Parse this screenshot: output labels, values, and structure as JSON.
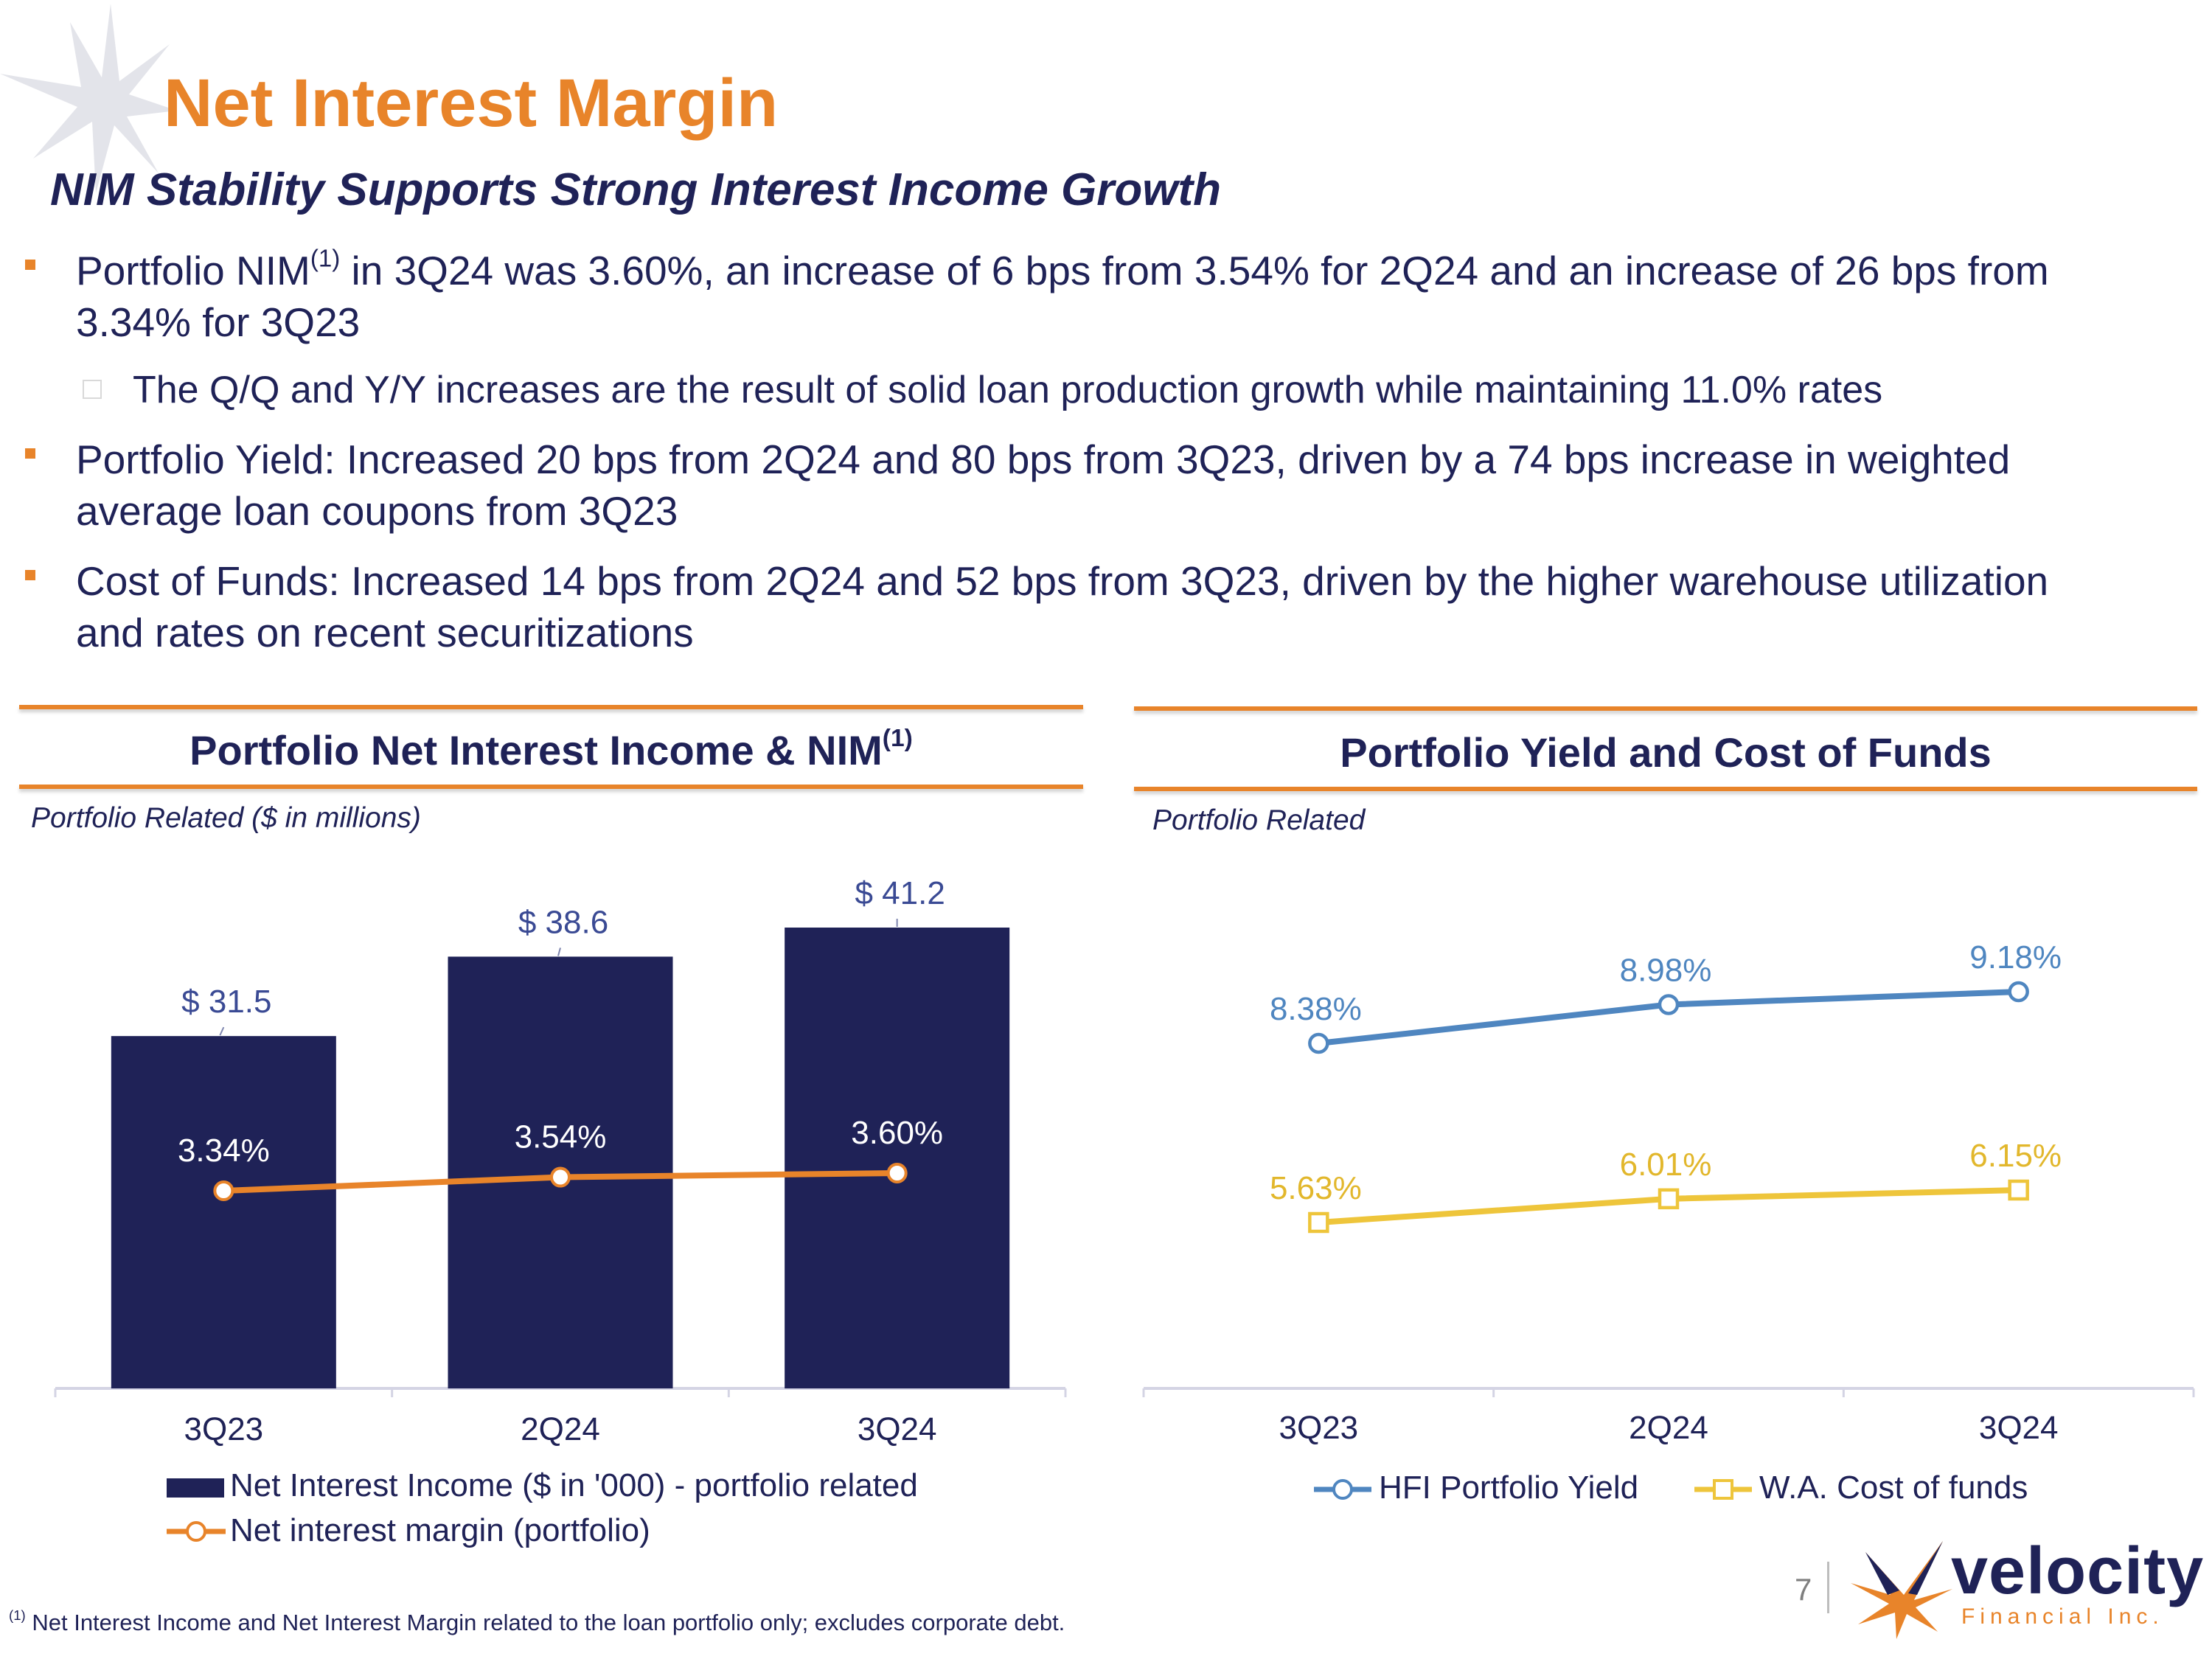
{
  "slide": {
    "title": "Net Interest Margin",
    "subtitle": "NIM Stability Supports Strong Interest Income Growth",
    "page_number": "7"
  },
  "bullets": [
    {
      "pre": "Portfolio NIM",
      "sup": "(1)",
      "post": " in 3Q24 was 3.60%, an increase of 6 bps from 3.54% for 2Q24 and an increase of 26 bps from",
      "line2": "3.34% for 3Q23"
    },
    {
      "sub": "The Q/Q and Y/Y increases are the result of solid loan production growth while maintaining 11.0% rates"
    },
    {
      "line1": "Portfolio Yield: Increased 20 bps from 2Q24 and 80 bps from 3Q23, driven by a 74 bps increase in weighted",
      "line2": "average loan coupons from 3Q23"
    },
    {
      "line1": "Cost of Funds: Increased 14 bps from 2Q24 and 52 bps from 3Q23, driven by the higher warehouse utilization",
      "line2": "and rates on recent securitizations"
    }
  ],
  "left_panel": {
    "title": "Portfolio Net Interest Income & NIM",
    "title_sup": "(1)",
    "note": "Portfolio Related ($ in millions)",
    "legend": [
      "Net Interest Income ($ in '000) - portfolio related",
      "Net interest margin (portfolio)"
    ]
  },
  "right_panel": {
    "title": "Portfolio Yield and Cost of Funds",
    "note": "Portfolio Related",
    "legend": [
      "HFI Portfolio Yield",
      "W.A. Cost of funds"
    ]
  },
  "footnote": {
    "sup": "(1)",
    "text": " Net Interest Income and Net Interest Margin related to the loan portfolio only; excludes corporate debt."
  },
  "logo": {
    "word": "velocity",
    "tag": "Financial Inc."
  },
  "colors": {
    "navy": "#1f2257",
    "orange": "#e8842a",
    "blue": "#4f86c0",
    "yellow": "#eec53b"
  },
  "chart_data": [
    {
      "type": "bar",
      "title": "Portfolio Net Interest Income & NIM",
      "categories": [
        "3Q23",
        "2Q24",
        "3Q24"
      ],
      "series": [
        {
          "name": "Net Interest Income ($ in '000) - portfolio related",
          "kind": "bar",
          "values": [
            31.5,
            38.6,
            41.2
          ],
          "labels": [
            "$ 31.5",
            "$ 38.6",
            "$ 41.2"
          ]
        },
        {
          "name": "Net interest margin (portfolio)",
          "kind": "line",
          "values": [
            3.34,
            3.54,
            3.6
          ],
          "labels": [
            "3.34%",
            "3.54%",
            "3.60%"
          ]
        }
      ],
      "ylim": [
        0,
        45
      ]
    },
    {
      "type": "line",
      "title": "Portfolio Yield and Cost of Funds",
      "categories": [
        "3Q23",
        "2Q24",
        "3Q24"
      ],
      "series": [
        {
          "name": "HFI Portfolio Yield",
          "values": [
            8.38,
            8.98,
            9.18
          ],
          "labels": [
            "8.38%",
            "8.98%",
            "9.18%"
          ]
        },
        {
          "name": "W.A. Cost of funds",
          "values": [
            5.63,
            6.01,
            6.15
          ],
          "labels": [
            "5.63%",
            "6.01%",
            "6.15%"
          ]
        }
      ]
    }
  ]
}
